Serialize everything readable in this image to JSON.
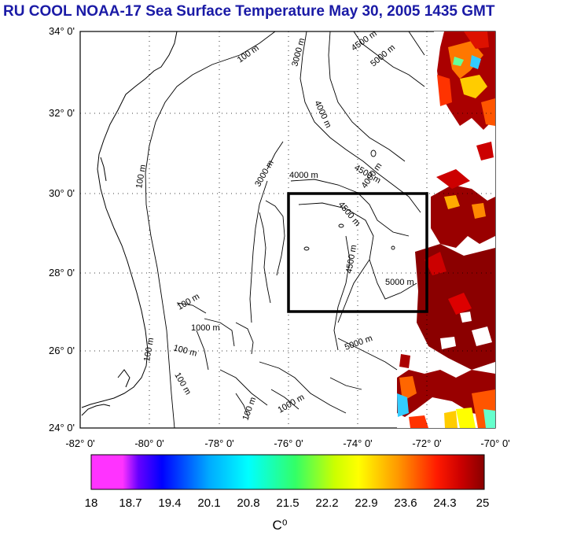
{
  "title": "RU COOL  NOAA-17 Sea Surface Temperature May 30, 2005 1435 GMT",
  "map": {
    "lat_labels": [
      "34° 0'",
      "32° 0'",
      "30° 0'",
      "28° 0'",
      "26° 0'",
      "24° 0'"
    ],
    "lon_labels": [
      "-82° 0'",
      "-80° 0'",
      "-78° 0'",
      "-76° 0'",
      "-74° 0'",
      "-72° 0'",
      "-70° 0'"
    ],
    "contour_labels": [
      "100 m",
      "3000 m",
      "4500 m",
      "5000 m",
      "4000 m",
      "100 m",
      "3000 m",
      "4000 m",
      "4500 m",
      "4000 m",
      "4500 m",
      "5000 m",
      "4500 m",
      "100 m",
      "100 m",
      "1000 m",
      "100 m",
      "100 m",
      "5000 m",
      "100 m",
      "1000 m"
    ],
    "study_box": {
      "lon": [
        -76,
        -72
      ],
      "lat": [
        27,
        30
      ]
    },
    "grid": true
  },
  "colorbar": {
    "tick_labels": [
      "18",
      "18.7",
      "19.4",
      "20.1",
      "20.8",
      "21.5",
      "22.2",
      "22.9",
      "23.6",
      "24.3",
      "25"
    ],
    "unit": "C⁰",
    "colors": [
      "#ff33ff",
      "#ff33ff",
      "#0000ff",
      "#00aaff",
      "#00ffff",
      "#33ff66",
      "#ccff00",
      "#ffff00",
      "#ff9900",
      "#ff2200",
      "#cc0000",
      "#880000"
    ]
  }
}
